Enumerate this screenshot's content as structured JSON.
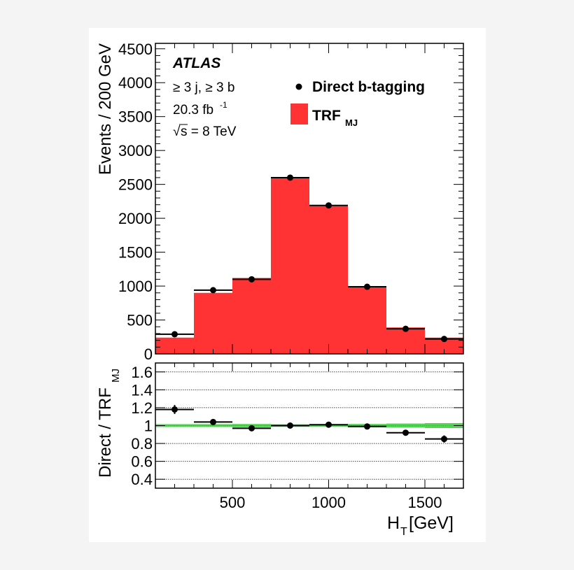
{
  "chart_data": [
    {
      "type": "bar",
      "panel": "main",
      "ylabel": "Events / 200  GeV",
      "xlim": [
        100,
        1700
      ],
      "ylim": [
        0,
        4580
      ],
      "y_ticks": [
        0,
        500,
        1000,
        1500,
        2000,
        2500,
        3000,
        3500,
        4000,
        4500
      ],
      "bin_edges": [
        100,
        300,
        500,
        700,
        900,
        1100,
        1300,
        1500,
        1700
      ],
      "series": [
        {
          "name": "Direct b-tagging",
          "style": "points",
          "color": "#000000",
          "values": [
            290,
            940,
            1100,
            2600,
            2190,
            990,
            370,
            220
          ]
        },
        {
          "name": "TRF",
          "name_sub": "MJ",
          "style": "filled-histogram",
          "color": "#ff3333",
          "values": [
            240,
            900,
            1120,
            2590,
            2180,
            990,
            390,
            240
          ]
        }
      ],
      "annotations": {
        "experiment": "ATLAS",
        "selection": "≥ 3 j, ≥ 3 b",
        "lumi": "20.3 fb",
        "lumi_sup": "-1",
        "energy_sqrt": "√",
        "energy": "s = 8 TeV"
      },
      "legend_placement": "top-right"
    },
    {
      "type": "scatter",
      "panel": "ratio",
      "ylabel": "Direct / TRF",
      "ylabel_sub": "MJ",
      "xlabel": "H",
      "xlabel_sub": "T",
      "xlabel_unit": " [GeV]",
      "xlim": [
        100,
        1700
      ],
      "ylim": [
        0.3,
        1.7
      ],
      "x_ticks": [
        500,
        1000,
        1500
      ],
      "y_ticks": [
        0.4,
        0.6,
        0.8,
        1,
        1.2,
        1.4,
        1.6
      ],
      "y_tick_labels": [
        "0.4",
        "0.6",
        "0.8",
        "1",
        "1.2",
        "1.4",
        "1.6"
      ],
      "grid": "horizontal dotted",
      "bin_edges": [
        100,
        300,
        500,
        700,
        900,
        1100,
        1300,
        1500,
        1700
      ],
      "values": [
        1.18,
        1.04,
        0.97,
        1.0,
        1.01,
        0.99,
        0.92,
        0.85
      ],
      "errors": [
        0.05,
        0.015,
        0.015,
        0.01,
        0.01,
        0.015,
        0.03,
        0.04
      ],
      "band": {
        "center": 1.0,
        "half_widths": [
          0.008,
          0.008,
          0.01,
          0.006,
          0.006,
          0.01,
          0.015,
          0.02
        ],
        "color": "#33cc33"
      }
    }
  ]
}
